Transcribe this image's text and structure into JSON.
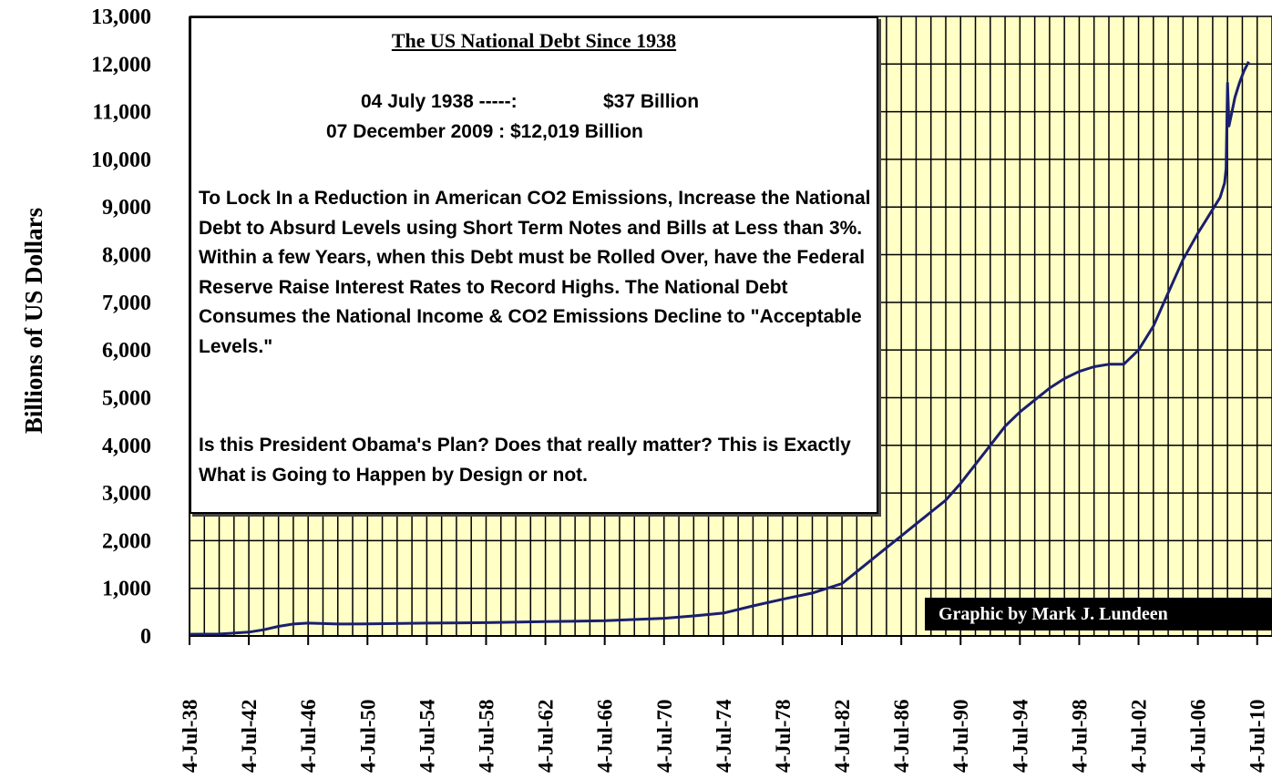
{
  "chart_data": {
    "type": "line",
    "ylabel": "Billions of US Dollars",
    "xlabel": "",
    "ylim": [
      0,
      13000
    ],
    "yticks": [
      0,
      1000,
      2000,
      3000,
      4000,
      5000,
      6000,
      7000,
      8000,
      9000,
      10000,
      11000,
      12000,
      13000
    ],
    "ytick_labels": [
      "0",
      "1,000",
      "2,000",
      "3,000",
      "4,000",
      "5,000",
      "6,000",
      "7,000",
      "8,000",
      "9,000",
      "10,000",
      "11,000",
      "12,000",
      "13,000"
    ],
    "xlim": [
      1938.5,
      2011.5
    ],
    "xtick_labels": [
      "4-Jul-38",
      "4-Jul-42",
      "4-Jul-46",
      "4-Jul-50",
      "4-Jul-54",
      "4-Jul-58",
      "4-Jul-62",
      "4-Jul-66",
      "4-Jul-70",
      "4-Jul-74",
      "4-Jul-78",
      "4-Jul-82",
      "4-Jul-86",
      "4-Jul-90",
      "4-Jul-94",
      "4-Jul-98",
      "4-Jul-02",
      "4-Jul-06",
      "4-Jul-10"
    ],
    "xtick_values": [
      1938.5,
      1942.5,
      1946.5,
      1950.5,
      1954.5,
      1958.5,
      1962.5,
      1966.5,
      1970.5,
      1974.5,
      1978.5,
      1982.5,
      1986.5,
      1990.5,
      1994.5,
      1998.5,
      2002.5,
      2006.5,
      2010.5
    ],
    "grid": true,
    "series": [
      {
        "color": "#1a1f6e",
        "x": [
          1938.5,
          1940.5,
          1942.5,
          1943.5,
          1944.5,
          1945.5,
          1946.5,
          1948.5,
          1950.5,
          1954.5,
          1958.5,
          1962.5,
          1966.5,
          1970.5,
          1972.5,
          1974.5,
          1976.5,
          1978.5,
          1980.5,
          1982.5,
          1983.5,
          1984.5,
          1985.5,
          1986.5,
          1987.5,
          1988.5,
          1989.5,
          1990.5,
          1991.5,
          1992.5,
          1993.5,
          1994.5,
          1995.5,
          1996.5,
          1997.5,
          1998.5,
          1999.5,
          2000.5,
          2001.5,
          2002.5,
          2003.5,
          2004.5,
          2005.5,
          2006.5,
          2007.0,
          2007.5,
          2008.0,
          2008.3,
          2008.4,
          2008.5,
          2008.6,
          2008.8,
          2009.0,
          2009.3,
          2009.6,
          2009.93
        ],
        "y": [
          37,
          40,
          80,
          130,
          200,
          250,
          270,
          250,
          255,
          270,
          280,
          300,
          320,
          370,
          420,
          480,
          630,
          770,
          900,
          1100,
          1350,
          1600,
          1850,
          2100,
          2350,
          2600,
          2850,
          3200,
          3600,
          4000,
          4400,
          4700,
          4950,
          5200,
          5400,
          5550,
          5650,
          5700,
          5700,
          6000,
          6500,
          7200,
          7900,
          8450,
          8700,
          8950,
          9200,
          9500,
          9800,
          11600,
          10700,
          11000,
          11300,
          11600,
          11850,
          12050
        ]
      }
    ]
  },
  "annotation": {
    "title": "The US National Debt Since 1938",
    "stat1_label": "04 July 1938 -----:",
    "stat1_value": "$37 Billion",
    "stat2": "07 December 2009 : $12,019 Billion",
    "para1": "To Lock In a Reduction in American CO2 Emissions, Increase the National Debt to Absurd Levels using Short Term Notes and Bills at Less than 3%.  Within a few Years, when this Debt must be Rolled Over, have the Federal Reserve Raise Interest Rates to Record Highs.  The National Debt Consumes the National Income & CO2 Emissions Decline to \"Acceptable Levels.\"",
    "para2": "Is this President Obama's Plan?  Does that really matter? This is Exactly What is Going to Happen by Design or not."
  },
  "credit": "Graphic by Mark J. Lundeen",
  "colors": {
    "plot_background": "#ffffc6",
    "grid": "#000000",
    "line": "#1a1f6e"
  }
}
